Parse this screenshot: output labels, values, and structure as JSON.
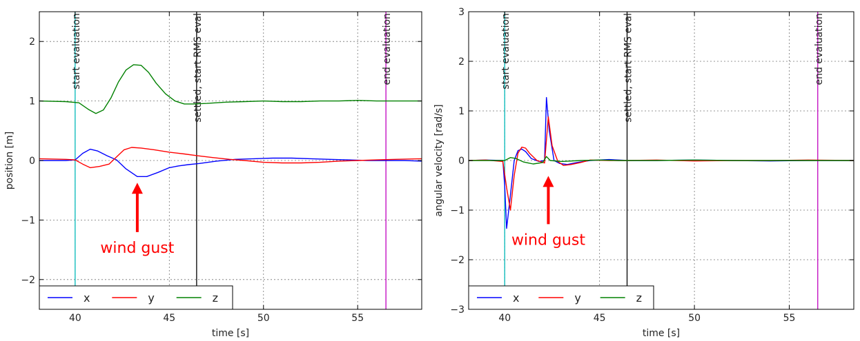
{
  "chart_data": [
    {
      "type": "line",
      "xlabel": "time [s]",
      "ylabel": "position [m]",
      "xlim": [
        38.1,
        58.4
      ],
      "ylim": [
        -2.5,
        2.5
      ],
      "xticks": [
        40,
        45,
        50,
        55
      ],
      "xtick_labels": [
        "40",
        "45",
        "50",
        "55"
      ],
      "yticks": [
        -2,
        -1,
        0,
        1,
        2
      ],
      "ytick_labels": [
        "−2",
        "−1",
        "0",
        "1",
        "2"
      ],
      "grid": true,
      "legend_position": "lower-left",
      "series": [
        {
          "name": "x",
          "color": "#0000ff",
          "x": [
            38.1,
            39.5,
            40.0,
            40.4,
            40.8,
            41.2,
            41.7,
            42.2,
            42.7,
            43.3,
            43.8,
            44.4,
            45.0,
            45.5,
            46.0,
            46.6,
            47.5,
            48.5,
            49.5,
            50.5,
            51.5,
            52.5,
            53.5,
            54.5,
            55.5,
            56.5,
            57.5,
            58.4
          ],
          "y": [
            0.0,
            0.0,
            0.01,
            0.12,
            0.19,
            0.16,
            0.08,
            0.01,
            -0.14,
            -0.27,
            -0.27,
            -0.2,
            -0.12,
            -0.09,
            -0.07,
            -0.05,
            -0.01,
            0.02,
            0.03,
            0.04,
            0.04,
            0.03,
            0.02,
            0.01,
            0.0,
            0.0,
            0.0,
            -0.01
          ]
        },
        {
          "name": "y",
          "color": "#ff0000",
          "x": [
            38.1,
            39.5,
            40.0,
            40.4,
            40.8,
            41.3,
            41.8,
            42.2,
            42.6,
            43.0,
            43.5,
            44.2,
            45.0,
            45.8,
            46.5,
            47.3,
            48.2,
            49.0,
            50.0,
            51.0,
            52.0,
            53.0,
            54.0,
            55.0,
            56.0,
            57.0,
            58.4
          ],
          "y": [
            0.03,
            0.02,
            0.01,
            -0.06,
            -0.12,
            -0.1,
            -0.06,
            0.06,
            0.18,
            0.22,
            0.21,
            0.18,
            0.14,
            0.11,
            0.08,
            0.05,
            0.02,
            0.0,
            -0.03,
            -0.04,
            -0.04,
            -0.03,
            -0.01,
            0.0,
            0.01,
            0.02,
            0.03
          ]
        },
        {
          "name": "z",
          "color": "#008000",
          "x": [
            38.1,
            39.5,
            40.2,
            40.7,
            41.1,
            41.5,
            41.9,
            42.3,
            42.7,
            43.1,
            43.5,
            43.9,
            44.3,
            44.8,
            45.3,
            45.8,
            46.3,
            47.0,
            48.0,
            49.0,
            50.0,
            51.0,
            52.0,
            53.0,
            54.0,
            55.0,
            56.0,
            57.0,
            58.4
          ],
          "y": [
            1.0,
            0.99,
            0.97,
            0.86,
            0.79,
            0.85,
            1.05,
            1.32,
            1.52,
            1.61,
            1.6,
            1.48,
            1.3,
            1.12,
            1.0,
            0.95,
            0.95,
            0.96,
            0.98,
            0.99,
            1.0,
            0.99,
            0.99,
            1.0,
            1.0,
            1.01,
            1.0,
            1.0,
            1.0
          ]
        }
      ],
      "vlines": [
        {
          "x": 40.0,
          "label": "start evaluation",
          "color": "#00b8b8"
        },
        {
          "x": 46.45,
          "label": "settled, start RMS eval",
          "color": "#000000"
        },
        {
          "x": 56.5,
          "label": "end evaluation",
          "color": "#bf00bf"
        }
      ],
      "annotation": {
        "text": "wind gust",
        "color": "#ff0000",
        "x": 43.3,
        "y": -1.55,
        "arrow_to": [
          43.3,
          -0.28
        ]
      }
    },
    {
      "type": "line",
      "xlabel": "time [s]",
      "ylabel": "angular velocity [rad/s]",
      "xlim": [
        38.1,
        58.4
      ],
      "ylim": [
        -3,
        3
      ],
      "xticks": [
        40,
        45,
        50,
        55
      ],
      "xtick_labels": [
        "40",
        "45",
        "50",
        "55"
      ],
      "yticks": [
        -3,
        -2,
        -1,
        0,
        1,
        2,
        3
      ],
      "ytick_labels": [
        "−3",
        "−2",
        "−1",
        "0",
        "1",
        "2",
        "3"
      ],
      "grid": true,
      "legend_position": "lower-left",
      "series": [
        {
          "name": "x",
          "color": "#0000ff",
          "x": [
            38.1,
            39.0,
            39.9,
            40.0,
            40.1,
            40.3,
            40.5,
            40.7,
            40.9,
            41.1,
            41.4,
            41.8,
            42.1,
            42.2,
            42.35,
            42.6,
            42.9,
            43.3,
            43.8,
            44.5,
            45.5,
            46.5,
            48.0,
            50.0,
            52.0,
            54.0,
            56.0,
            58.4
          ],
          "y": [
            0.0,
            0.01,
            0.0,
            -0.5,
            -1.37,
            -0.7,
            0.0,
            0.2,
            0.23,
            0.18,
            0.04,
            -0.02,
            0.0,
            1.27,
            0.6,
            0.0,
            -0.06,
            -0.08,
            -0.04,
            0.0,
            0.02,
            0.0,
            0.0,
            0.01,
            0.0,
            -0.01,
            0.0,
            0.0
          ]
        },
        {
          "name": "y",
          "color": "#ff0000",
          "x": [
            38.1,
            39.0,
            39.9,
            40.1,
            40.3,
            40.5,
            40.7,
            40.9,
            41.1,
            41.3,
            41.7,
            42.1,
            42.3,
            42.5,
            42.8,
            43.1,
            43.5,
            44.0,
            44.5,
            45.5,
            46.5,
            48.0,
            50.0,
            52.0,
            54.0,
            56.0,
            58.4
          ],
          "y": [
            0.0,
            0.01,
            -0.02,
            -0.55,
            -1.0,
            -0.3,
            0.15,
            0.27,
            0.25,
            0.15,
            0.0,
            -0.05,
            0.88,
            0.3,
            -0.02,
            -0.1,
            -0.08,
            -0.04,
            0.01,
            0.0,
            0.0,
            0.01,
            -0.01,
            0.0,
            0.0,
            0.01,
            0.0
          ]
        },
        {
          "name": "z",
          "color": "#008000",
          "x": [
            38.1,
            39.0,
            40.0,
            40.3,
            40.6,
            41.0,
            41.5,
            42.0,
            42.2,
            42.4,
            43.0,
            44.0,
            45.0,
            46.0,
            48.0,
            50.0,
            52.0,
            54.0,
            56.0,
            58.4
          ],
          "y": [
            0.0,
            0.0,
            0.0,
            0.06,
            0.04,
            -0.03,
            -0.07,
            -0.04,
            0.08,
            0.0,
            -0.02,
            0.0,
            0.01,
            0.0,
            0.0,
            0.01,
            0.0,
            0.0,
            0.0,
            0.0
          ]
        }
      ],
      "vlines": [
        {
          "x": 40.0,
          "label": "start evaluation",
          "color": "#00b8b8"
        },
        {
          "x": 46.45,
          "label": "settled, start RMS eval",
          "color": "#000000"
        },
        {
          "x": 56.5,
          "label": "end evaluation",
          "color": "#bf00bf"
        }
      ],
      "annotation": {
        "text": "wind gust",
        "color": "#ff0000",
        "x": 42.3,
        "y": -1.7,
        "arrow_to": [
          42.3,
          -0.2
        ]
      }
    }
  ]
}
